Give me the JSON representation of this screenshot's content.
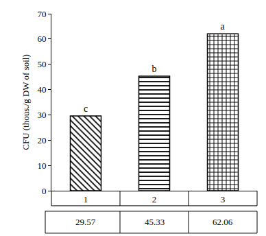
{
  "chart_data": {
    "type": "bar",
    "categories": [
      "1",
      "2",
      "3"
    ],
    "values": [
      29.57,
      45.33,
      62.06
    ],
    "annotations": [
      "c",
      "b",
      "a"
    ],
    "ylabel": "CFU (thous./g DW of soil)",
    "ylim": [
      0,
      70
    ],
    "yticks": [
      0,
      10,
      20,
      30,
      40,
      50,
      60,
      70
    ],
    "grid": false,
    "color": "#000000"
  }
}
